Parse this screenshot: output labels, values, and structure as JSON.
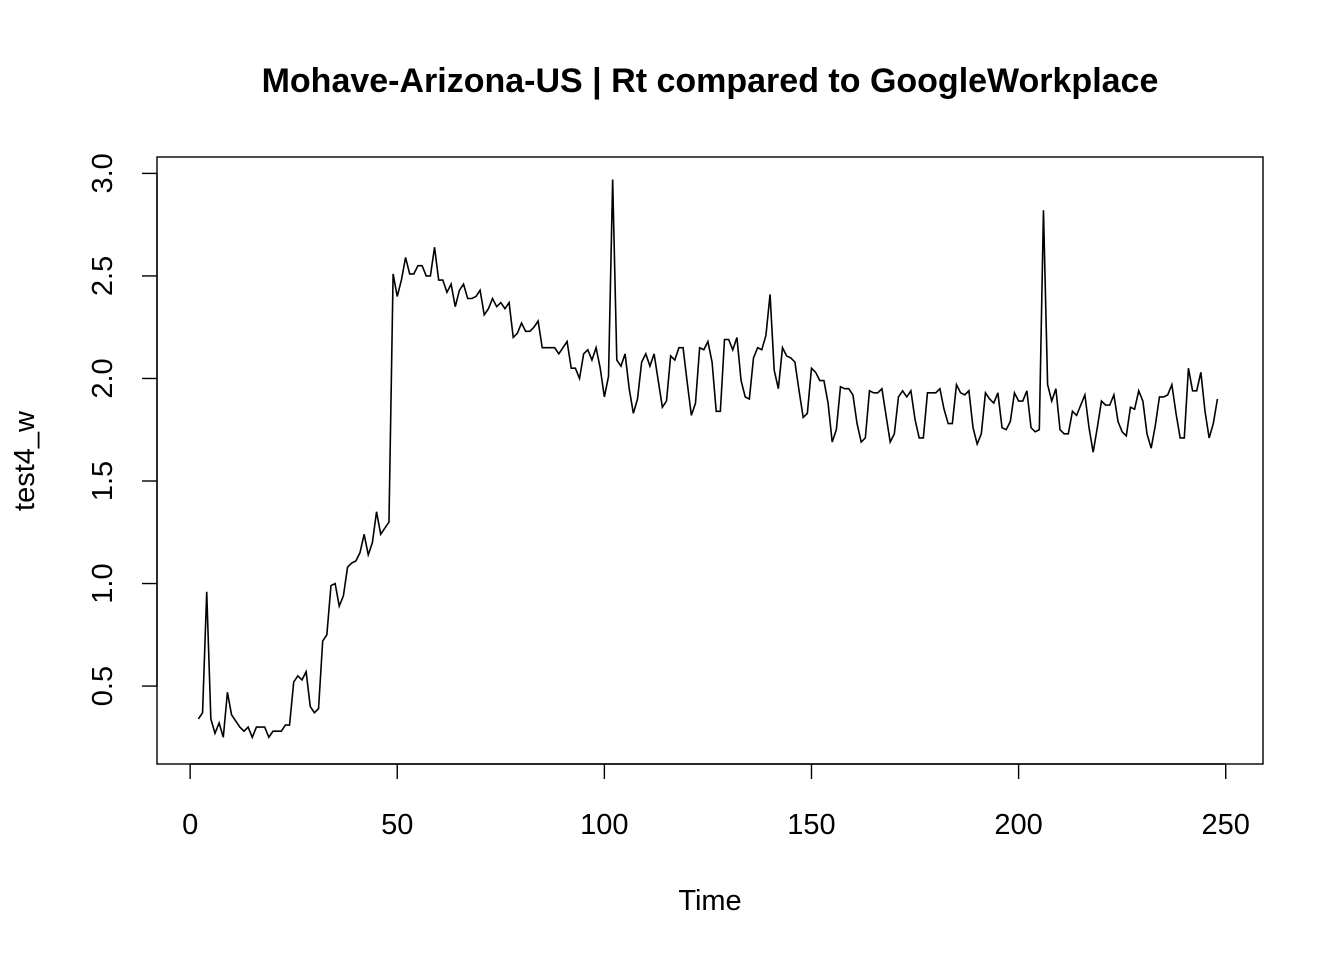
{
  "chart_data": {
    "type": "line",
    "title": "Mohave-Arizona-US | Rt compared to GoogleWorkplace",
    "xlabel": "Time",
    "ylabel": "test4_w",
    "xlim": [
      -8,
      259
    ],
    "ylim": [
      0.12,
      3.08
    ],
    "x_ticks": [
      0,
      50,
      100,
      150,
      200,
      250
    ],
    "y_ticks": [
      0.5,
      1.0,
      1.5,
      2.0,
      2.5,
      3.0
    ],
    "x_tick_labels": [
      "0",
      "50",
      "100",
      "150",
      "200",
      "250"
    ],
    "y_tick_labels": [
      "0.5",
      "1.0",
      "1.5",
      "2.0",
      "2.5",
      "3.0"
    ],
    "grid": false,
    "series": [
      {
        "x_start": 2,
        "x_step": 1,
        "values": [
          0.34,
          0.37,
          0.96,
          0.34,
          0.27,
          0.32,
          0.25,
          0.47,
          0.36,
          0.33,
          0.3,
          0.28,
          0.3,
          0.25,
          0.3,
          0.3,
          0.3,
          0.25,
          0.28,
          0.28,
          0.28,
          0.31,
          0.31,
          0.52,
          0.55,
          0.53,
          0.57,
          0.4,
          0.37,
          0.39,
          0.72,
          0.75,
          0.99,
          1.0,
          0.89,
          0.94,
          1.08,
          1.1,
          1.11,
          1.15,
          1.24,
          1.14,
          1.2,
          1.35,
          1.24,
          1.27,
          1.3,
          2.51,
          2.4,
          2.48,
          2.59,
          2.51,
          2.51,
          2.55,
          2.55,
          2.5,
          2.5,
          2.64,
          2.48,
          2.48,
          2.42,
          2.46,
          2.35,
          2.43,
          2.46,
          2.39,
          2.39,
          2.4,
          2.43,
          2.31,
          2.34,
          2.39,
          2.35,
          2.37,
          2.34,
          2.37,
          2.2,
          2.22,
          2.27,
          2.23,
          2.23,
          2.25,
          2.28,
          2.15,
          2.15,
          2.15,
          2.15,
          2.12,
          2.15,
          2.18,
          2.05,
          2.05,
          2.0,
          2.12,
          2.14,
          2.09,
          2.15,
          2.05,
          1.91,
          2.01,
          2.97,
          2.09,
          2.06,
          2.12,
          1.95,
          1.83,
          1.9,
          2.08,
          2.12,
          2.06,
          2.12,
          1.99,
          1.86,
          1.89,
          2.11,
          2.09,
          2.15,
          2.15,
          1.98,
          1.82,
          1.88,
          2.15,
          2.14,
          2.18,
          2.08,
          1.84,
          1.84,
          2.19,
          2.19,
          2.14,
          2.2,
          1.99,
          1.91,
          1.9,
          2.1,
          2.15,
          2.14,
          2.21,
          2.41,
          2.04,
          1.95,
          2.15,
          2.11,
          2.1,
          2.08,
          1.94,
          1.81,
          1.83,
          2.05,
          2.03,
          1.99,
          1.99,
          1.88,
          1.69,
          1.75,
          1.96,
          1.95,
          1.95,
          1.92,
          1.78,
          1.69,
          1.71,
          1.94,
          1.93,
          1.93,
          1.95,
          1.82,
          1.69,
          1.73,
          1.91,
          1.94,
          1.91,
          1.94,
          1.8,
          1.71,
          1.71,
          1.93,
          1.93,
          1.93,
          1.95,
          1.85,
          1.78,
          1.78,
          1.97,
          1.93,
          1.92,
          1.94,
          1.76,
          1.68,
          1.73,
          1.93,
          1.9,
          1.88,
          1.93,
          1.76,
          1.75,
          1.79,
          1.93,
          1.89,
          1.89,
          1.94,
          1.76,
          1.74,
          1.75,
          2.82,
          1.97,
          1.89,
          1.95,
          1.75,
          1.73,
          1.73,
          1.84,
          1.82,
          1.87,
          1.92,
          1.76,
          1.64,
          1.76,
          1.89,
          1.87,
          1.87,
          1.92,
          1.79,
          1.74,
          1.72,
          1.86,
          1.85,
          1.94,
          1.89,
          1.73,
          1.66,
          1.77,
          1.91,
          1.91,
          1.92,
          1.97,
          1.83,
          1.71,
          1.71,
          2.05,
          1.94,
          1.94,
          2.03,
          1.84,
          1.71,
          1.78,
          1.9
        ]
      }
    ]
  }
}
